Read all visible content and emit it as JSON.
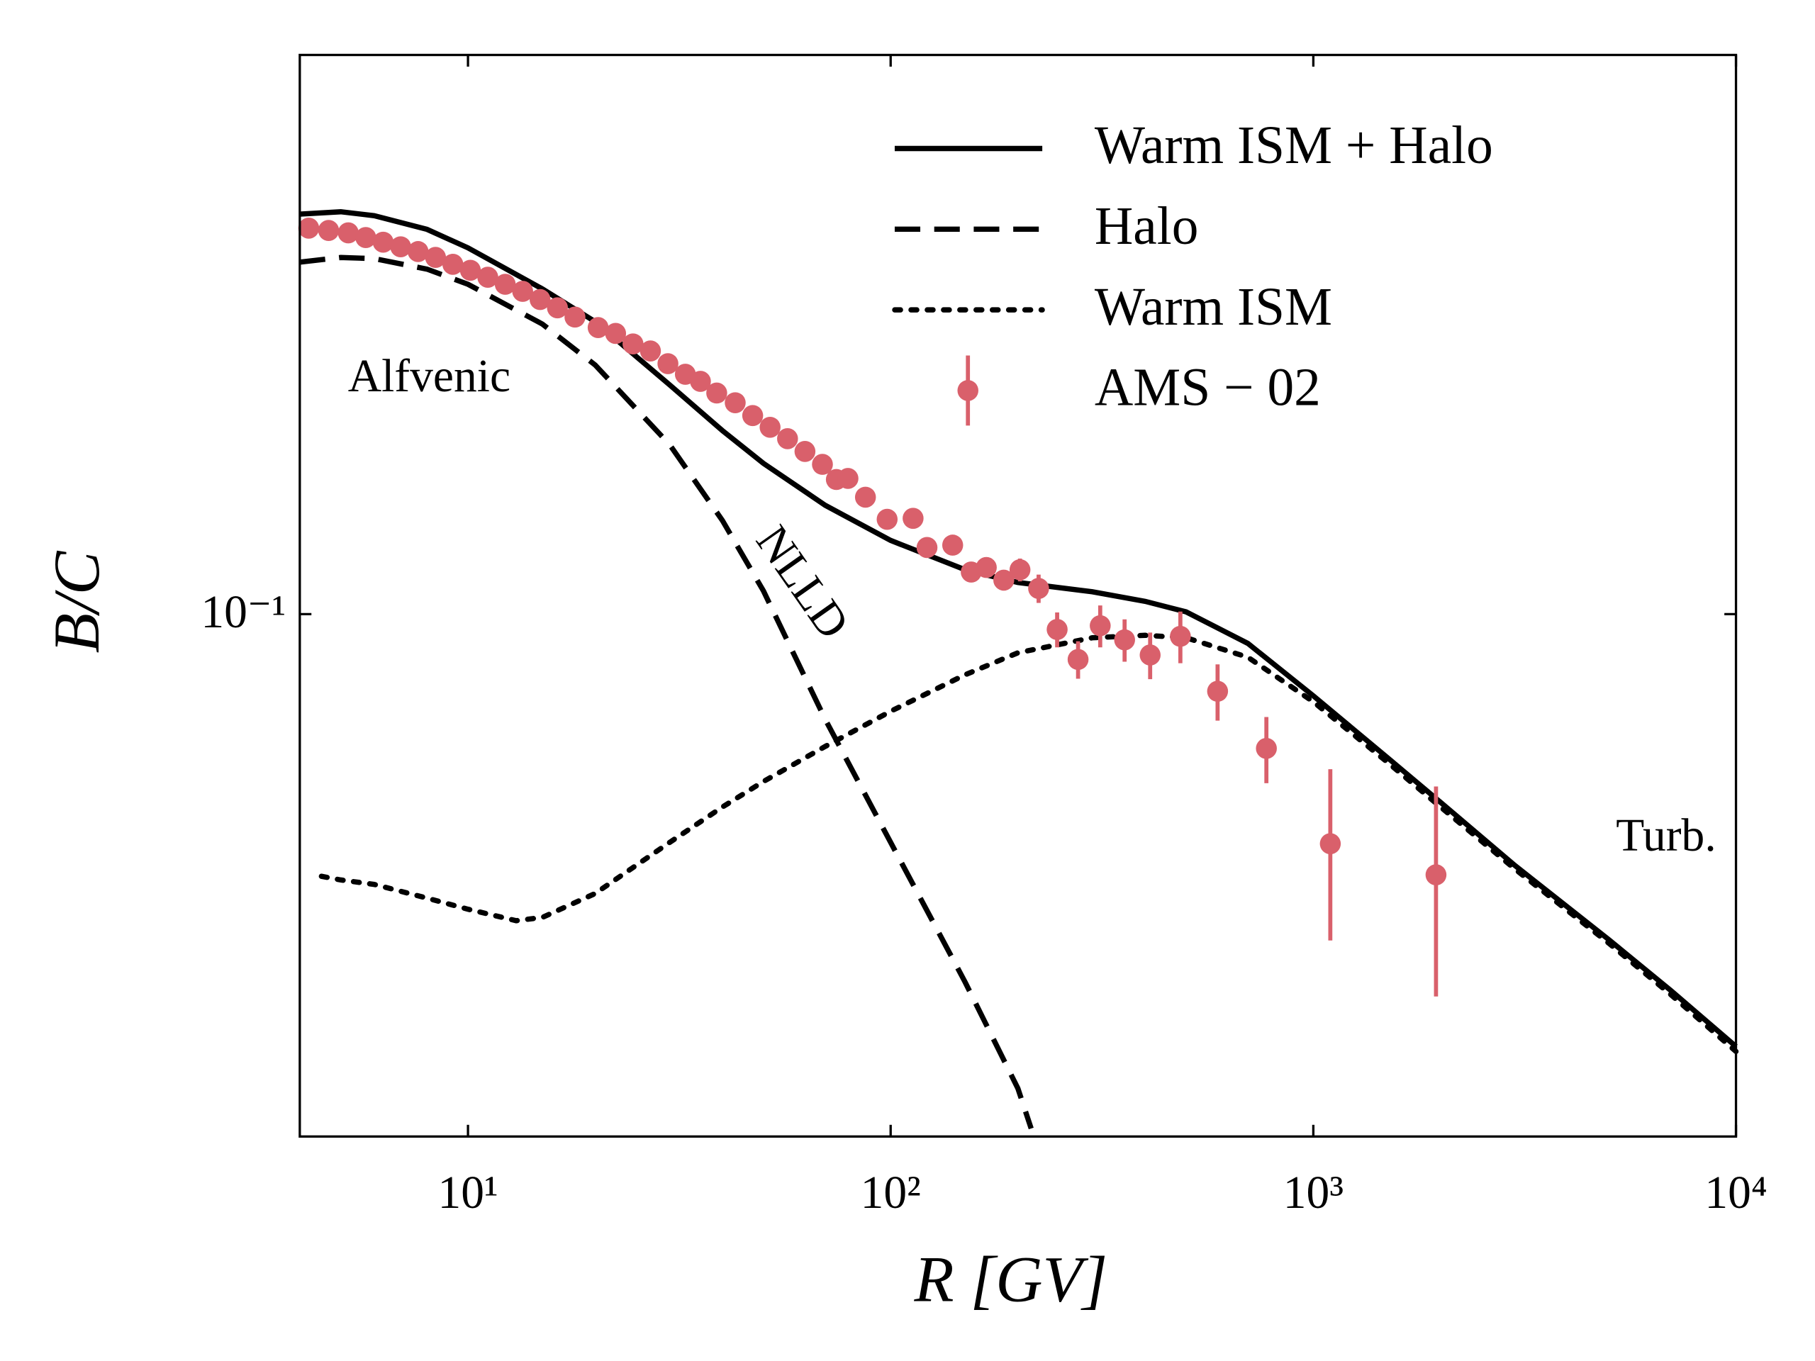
{
  "chart_data": {
    "type": "line",
    "xlabel": "R [GV]",
    "ylabel": "B/C",
    "xscale": "log",
    "yscale": "log",
    "xlim": [
      4,
      10000
    ],
    "ylim": [
      0.0201,
      0.557
    ],
    "xticks": [
      {
        "value": 10,
        "label": "10¹"
      },
      {
        "value": 100,
        "label": "10²"
      },
      {
        "value": 1000,
        "label": "10³"
      },
      {
        "value": 10000,
        "label": "10⁴"
      }
    ],
    "yticks": [
      {
        "value": 0.1,
        "label": "10⁻¹"
      }
    ],
    "legend": "upper right",
    "annotations": [
      {
        "text": "Alfvenic",
        "x": 5.2,
        "y": 0.205
      },
      {
        "text": "NLLD",
        "x": 50,
        "y": 0.128,
        "rotation": 55
      },
      {
        "text": "Turb.",
        "x": 5200,
        "y": 0.05
      }
    ],
    "series": [
      {
        "name": "Warm ISM  +  Halo",
        "color": "#000000",
        "linestyle": "solid",
        "x": [
          4,
          5,
          6,
          8,
          10,
          15,
          20,
          30,
          40,
          50,
          70,
          100,
          150,
          200,
          300,
          400,
          500,
          700,
          1000,
          1500,
          2000,
          3000,
          5000,
          7000,
          10000
        ],
        "values": [
          0.3416,
          0.3441,
          0.34,
          0.326,
          0.308,
          0.2715,
          0.2455,
          0.2022,
          0.1757,
          0.1589,
          0.1397,
          0.1254,
          0.1146,
          0.1102,
          0.1071,
          0.104,
          0.1007,
          0.0914,
          0.0778,
          0.0643,
          0.0561,
          0.0462,
          0.0368,
          0.0315,
          0.0265
        ]
      },
      {
        "name": "Halo",
        "color": "#000000",
        "linestyle": "dashed",
        "x": [
          4,
          5,
          6,
          8,
          10,
          15,
          20,
          30,
          40,
          50,
          70,
          100,
          150,
          200,
          215
        ],
        "values": [
          0.2948,
          0.299,
          0.298,
          0.2885,
          0.2754,
          0.2437,
          0.2149,
          0.1683,
          0.1333,
          0.1074,
          0.0724,
          0.0496,
          0.0323,
          0.0233,
          0.0206
        ]
      },
      {
        "name": "Warm ISM",
        "color": "#000000",
        "linestyle": "dotted",
        "x": [
          4.5,
          5,
          6,
          8,
          10,
          13,
          15,
          20,
          30,
          40,
          50,
          70,
          100,
          150,
          200,
          300,
          400,
          500,
          700,
          1000,
          1500,
          2000,
          3000,
          5000,
          7000,
          10000
        ],
        "values": [
          0.0447,
          0.0442,
          0.0436,
          0.0418,
          0.0404,
          0.039,
          0.0394,
          0.0424,
          0.0496,
          0.0553,
          0.0598,
          0.0666,
          0.0742,
          0.083,
          0.0888,
          0.093,
          0.0937,
          0.093,
          0.0876,
          0.0764,
          0.0634,
          0.0553,
          0.0457,
          0.0364,
          0.0311,
          0.0261
        ]
      },
      {
        "name": "AMS − 02",
        "color": "#d9606b",
        "linestyle": "errorbar",
        "x": [
          4.2,
          4.68,
          5.21,
          5.73,
          6.3,
          6.93,
          7.62,
          8.38,
          9.21,
          10.13,
          11.14,
          12.25,
          13.47,
          14.81,
          16.28,
          17.91,
          20.32,
          22.35,
          24.57,
          27.02,
          29.72,
          32.68,
          35.48,
          38.77,
          42.88,
          47.16,
          51.85,
          57.02,
          62.7,
          68.96,
          74.39,
          79.25,
          87.17,
          98.1,
          113.0,
          121.9,
          140.2,
          155.1,
          168.4,
          185.2,
          202.3,
          223.9,
          247.7,
          277.6,
          313.2,
          357.7,
          411.1,
          484.7,
          593.6,
          774.4,
          1097,
          1951
        ],
        "values": [
          0.3272,
          0.3249,
          0.3225,
          0.3179,
          0.3134,
          0.309,
          0.3045,
          0.2991,
          0.2928,
          0.2875,
          0.2814,
          0.2754,
          0.2695,
          0.2628,
          0.2562,
          0.249,
          0.2411,
          0.2368,
          0.2293,
          0.2244,
          0.2158,
          0.2089,
          0.2044,
          0.1972,
          0.1914,
          0.184,
          0.1775,
          0.1714,
          0.1648,
          0.1584,
          0.1512,
          0.1517,
          0.1432,
          0.1338,
          0.1342,
          0.1227,
          0.1236,
          0.1138,
          0.1154,
          0.111,
          0.1146,
          0.1082,
          0.0954,
          0.087,
          0.0965,
          0.0924,
          0.0882,
          0.0934,
          0.0789,
          0.0662,
          0.0494,
          0.0449
        ],
        "err": [
          0.002,
          0.002,
          0.002,
          0.002,
          0.002,
          0.002,
          0.002,
          0.002,
          0.002,
          0.002,
          0.002,
          0.002,
          0.002,
          0.002,
          0.002,
          0.002,
          0.002,
          0.002,
          0.002,
          0.002,
          0.002,
          0.002,
          0.002,
          0.002,
          0.002,
          0.002,
          0.002,
          0.002,
          0.002,
          0.002,
          0.002,
          0.002,
          0.002,
          0.002,
          0.002,
          0.002,
          0.002,
          0.002,
          0.003,
          0.0035,
          0.004,
          0.0047,
          0.0051,
          0.005,
          0.0062,
          0.006,
          0.0063,
          0.0074,
          0.0068,
          0.0067,
          0.0127,
          0.014
        ]
      }
    ]
  }
}
